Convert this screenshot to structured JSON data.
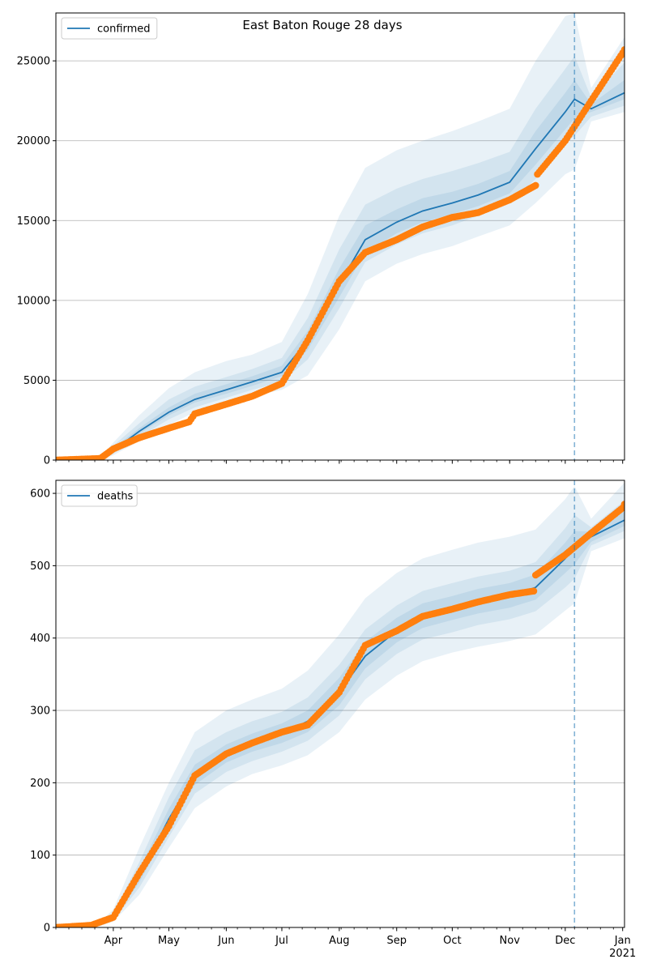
{
  "chart_data": [
    {
      "type": "line",
      "title": "East Baton Rouge 28 days",
      "legend": {
        "placement": "top-left",
        "entries": [
          "confirmed"
        ]
      },
      "xlim": [
        "2020-03-01",
        "2021-01-02"
      ],
      "ylim": [
        0,
        28000
      ],
      "yticks": [
        0,
        5000,
        10000,
        15000,
        20000,
        25000
      ],
      "grid": "horizontal",
      "forecast_start": "2020-12-06",
      "series": [
        {
          "name": "confirmed",
          "kind": "model-median",
          "color": "#1f77b4",
          "x": [
            "2020-03-01",
            "2020-03-25",
            "2020-04-01",
            "2020-04-15",
            "2020-05-01",
            "2020-05-15",
            "2020-06-01",
            "2020-06-15",
            "2020-07-01",
            "2020-07-15",
            "2020-08-01",
            "2020-08-15",
            "2020-09-01",
            "2020-09-15",
            "2020-10-01",
            "2020-10-15",
            "2020-11-01",
            "2020-11-15",
            "2020-12-01",
            "2020-12-06",
            "2020-12-15",
            "2021-01-02"
          ],
          "values": [
            0,
            100,
            600,
            1800,
            3000,
            3800,
            4400,
            4900,
            5500,
            7500,
            11000,
            13800,
            14900,
            15600,
            16100,
            16600,
            17400,
            19500,
            21800,
            22600,
            22000,
            23000
          ]
        },
        {
          "kind": "observed",
          "color": "#ff7f0e",
          "x": [
            "2020-03-01",
            "2020-03-25",
            "2020-04-01",
            "2020-04-15",
            "2020-05-01",
            "2020-05-12",
            "2020-05-15",
            "2020-06-01",
            "2020-06-15",
            "2020-07-01",
            "2020-07-15",
            "2020-08-01",
            "2020-08-15",
            "2020-09-01",
            "2020-09-15",
            "2020-10-01",
            "2020-10-15",
            "2020-11-01",
            "2020-11-15",
            "2020-11-16",
            "2020-12-01",
            "2020-12-15",
            "2021-01-01",
            "2021-01-02"
          ],
          "values": [
            0,
            100,
            700,
            1400,
            2000,
            2400,
            2900,
            3500,
            4000,
            4800,
            7500,
            11200,
            13000,
            13800,
            14600,
            15200,
            15500,
            16300,
            17200,
            17900,
            20000,
            22500,
            25500,
            25700
          ]
        }
      ],
      "bands": {
        "color": "#1f77b4",
        "x": [
          "2020-03-01",
          "2020-03-25",
          "2020-04-01",
          "2020-04-15",
          "2020-05-01",
          "2020-05-15",
          "2020-06-01",
          "2020-06-15",
          "2020-07-01",
          "2020-07-15",
          "2020-08-01",
          "2020-08-15",
          "2020-09-01",
          "2020-09-15",
          "2020-10-01",
          "2020-10-15",
          "2020-11-01",
          "2020-11-15",
          "2020-12-01",
          "2020-12-06",
          "2020-12-15",
          "2021-01-02"
        ],
        "outer_low": [
          0,
          0,
          300,
          1200,
          2200,
          3000,
          3500,
          4000,
          4400,
          5300,
          8200,
          11200,
          12300,
          12900,
          13400,
          14000,
          14700,
          16100,
          17900,
          18200,
          21200,
          21800
        ],
        "outer_high": [
          0,
          200,
          1100,
          2800,
          4500,
          5500,
          6200,
          6600,
          7400,
          10400,
          15300,
          18300,
          19400,
          20000,
          20600,
          21200,
          22000,
          25000,
          27800,
          28000,
          23300,
          26500
        ],
        "mid_low": [
          0,
          50,
          400,
          1450,
          2550,
          3300,
          3900,
          4400,
          4900,
          6300,
          9500,
          12400,
          13500,
          14200,
          14700,
          15300,
          16100,
          17600,
          19800,
          20300,
          21500,
          22200
        ],
        "mid_high": [
          0,
          150,
          900,
          2300,
          3800,
          4600,
          5200,
          5700,
          6400,
          8900,
          13200,
          16000,
          17000,
          17600,
          18100,
          18600,
          19300,
          22000,
          24500,
          25300,
          22700,
          24900
        ],
        "inner_low": [
          0,
          80,
          500,
          1650,
          2800,
          3600,
          4150,
          4650,
          5250,
          6900,
          10200,
          13000,
          14200,
          14900,
          15400,
          15900,
          16700,
          18500,
          20700,
          21400,
          21800,
          22600
        ],
        "inner_high": [
          0,
          120,
          750,
          2000,
          3300,
          4150,
          4750,
          5250,
          5900,
          8100,
          12000,
          14700,
          15700,
          16400,
          16800,
          17300,
          18100,
          20600,
          23000,
          23800,
          22300,
          23800
        ]
      }
    },
    {
      "type": "line",
      "legend": {
        "placement": "top-left",
        "entries": [
          "deaths"
        ]
      },
      "xlim": [
        "2020-03-01",
        "2021-01-02"
      ],
      "ylim": [
        0,
        618
      ],
      "yticks": [
        0,
        100,
        200,
        300,
        400,
        500,
        600
      ],
      "grid": "horizontal",
      "forecast_start": "2020-12-06",
      "xtick_labels": [
        "Apr",
        "May",
        "Jun",
        "Jul",
        "Aug",
        "Sep",
        "Oct",
        "Nov",
        "Dec",
        "Jan"
      ],
      "xtick_dates": [
        "2020-04-01",
        "2020-05-01",
        "2020-06-01",
        "2020-07-01",
        "2020-08-01",
        "2020-09-01",
        "2020-10-01",
        "2020-11-01",
        "2020-12-01",
        "2021-01-01"
      ],
      "year_label": "2021",
      "series": [
        {
          "name": "deaths",
          "kind": "model-median",
          "color": "#1f77b4",
          "x": [
            "2020-03-01",
            "2020-03-25",
            "2020-04-01",
            "2020-04-15",
            "2020-05-01",
            "2020-05-15",
            "2020-06-01",
            "2020-06-15",
            "2020-07-01",
            "2020-07-15",
            "2020-08-01",
            "2020-08-15",
            "2020-09-01",
            "2020-09-15",
            "2020-10-01",
            "2020-10-15",
            "2020-11-01",
            "2020-11-15",
            "2020-12-01",
            "2020-12-06",
            "2020-12-15",
            "2021-01-02"
          ],
          "values": [
            0,
            5,
            15,
            70,
            150,
            210,
            240,
            255,
            268,
            285,
            325,
            375,
            410,
            430,
            440,
            450,
            458,
            470,
            510,
            525,
            540,
            563
          ]
        },
        {
          "kind": "observed",
          "color": "#ff7f0e",
          "x": [
            "2020-03-01",
            "2020-03-20",
            "2020-04-01",
            "2020-04-15",
            "2020-05-01",
            "2020-05-15",
            "2020-06-01",
            "2020-06-15",
            "2020-07-01",
            "2020-07-15",
            "2020-08-01",
            "2020-08-15",
            "2020-09-01",
            "2020-09-15",
            "2020-10-01",
            "2020-10-15",
            "2020-11-01",
            "2020-11-14",
            "2020-11-15",
            "2020-12-01",
            "2020-12-15",
            "2021-01-01",
            "2021-01-02"
          ],
          "values": [
            0,
            3,
            14,
            75,
            140,
            210,
            240,
            255,
            270,
            280,
            325,
            390,
            410,
            430,
            440,
            450,
            460,
            465,
            487,
            515,
            545,
            580,
            585
          ]
        }
      ],
      "bands": {
        "color": "#1f77b4",
        "x": [
          "2020-03-01",
          "2020-03-25",
          "2020-04-01",
          "2020-04-15",
          "2020-05-01",
          "2020-05-15",
          "2020-06-01",
          "2020-06-15",
          "2020-07-01",
          "2020-07-15",
          "2020-08-01",
          "2020-08-15",
          "2020-09-01",
          "2020-09-15",
          "2020-10-01",
          "2020-10-15",
          "2020-11-01",
          "2020-11-15",
          "2020-12-01",
          "2020-12-06",
          "2020-12-15",
          "2021-01-02"
        ],
        "outer_low": [
          0,
          2,
          8,
          45,
          110,
          165,
          195,
          212,
          224,
          238,
          270,
          315,
          348,
          368,
          380,
          388,
          396,
          405,
          438,
          448,
          520,
          538
        ],
        "outer_high": [
          0,
          8,
          25,
          110,
          200,
          270,
          300,
          315,
          330,
          355,
          405,
          455,
          490,
          510,
          522,
          532,
          540,
          550,
          592,
          610,
          565,
          615
        ],
        "mid_low": [
          0,
          3,
          10,
          55,
          125,
          185,
          215,
          230,
          243,
          258,
          293,
          343,
          378,
          398,
          408,
          418,
          426,
          437,
          470,
          482,
          528,
          548
        ],
        "mid_high": [
          0,
          7,
          20,
          90,
          180,
          245,
          270,
          285,
          298,
          318,
          363,
          412,
          445,
          465,
          476,
          485,
          493,
          505,
          552,
          570,
          553,
          590
        ],
        "inner_low": [
          0,
          4,
          12,
          62,
          137,
          197,
          228,
          243,
          255,
          270,
          307,
          358,
          394,
          414,
          425,
          434,
          442,
          453,
          490,
          502,
          533,
          555
        ],
        "inner_high": [
          0,
          6,
          18,
          80,
          164,
          225,
          253,
          268,
          282,
          300,
          345,
          395,
          428,
          448,
          458,
          468,
          476,
          488,
          532,
          548,
          547,
          575
        ]
      }
    }
  ]
}
